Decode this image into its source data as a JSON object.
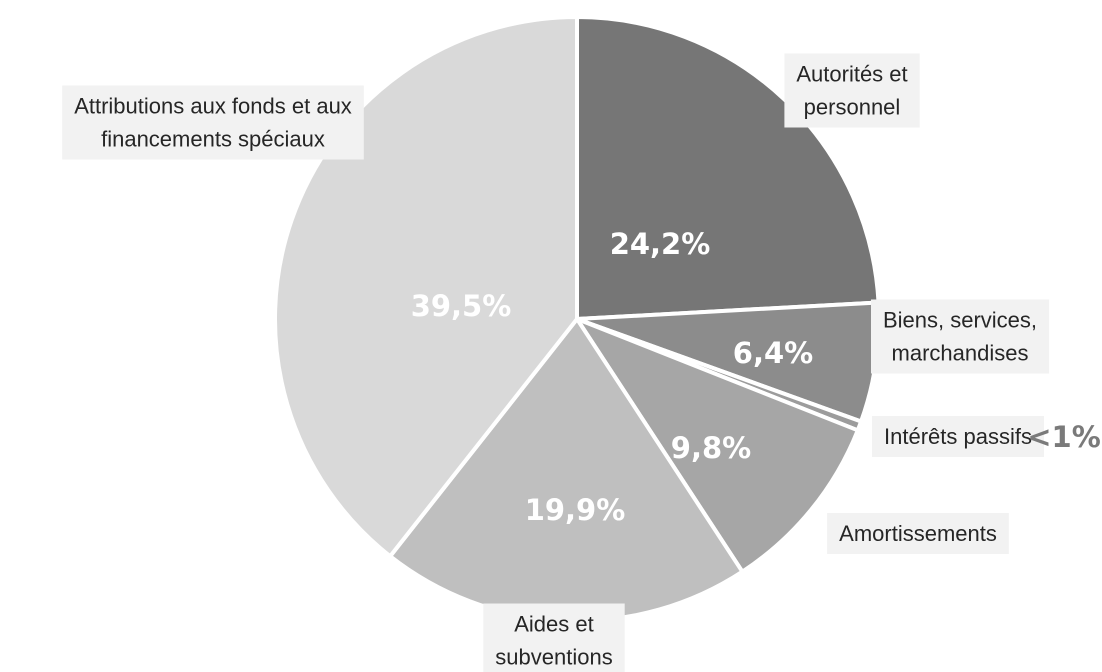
{
  "chart_data": {
    "type": "pie",
    "categories": [
      "Autorités et personnel",
      "Biens, services, marchandises",
      "Intérêts passifs",
      "Amortissements",
      "Aides et subventions",
      "Attributions aux fonds et aux financements spéciaux"
    ],
    "values": [
      24.2,
      6.4,
      0.5,
      9.8,
      19.9,
      39.5
    ],
    "value_labels": [
      "24,2%",
      "6,4%",
      "<1%",
      "9,8%",
      "19,9%",
      "39,5%"
    ],
    "category_label_lines": [
      [
        "Autorités et",
        "personnel"
      ],
      [
        "Biens, services,",
        "marchandises"
      ],
      [
        "Intérêts passifs"
      ],
      [
        "Amortissements"
      ],
      [
        "Aides et",
        "subventions"
      ],
      [
        "Attributions aux fonds et aux",
        "financements spéciaux"
      ]
    ],
    "colors": [
      "#767676",
      "#8c8c8c",
      "#9c9c9c",
      "#a6a6a6",
      "#bfbfbf",
      "#d9d9d9"
    ],
    "start_angle": "12 o'clock",
    "direction": "clockwise",
    "legend": "none"
  }
}
